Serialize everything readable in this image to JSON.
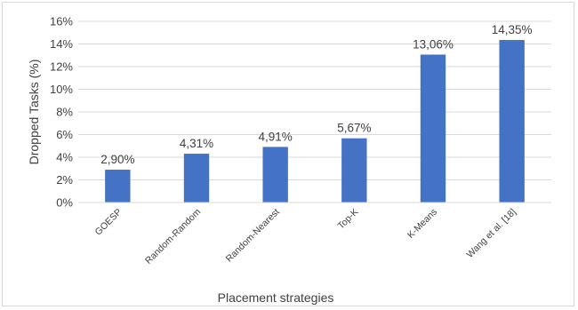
{
  "chart_data": {
    "type": "bar",
    "categories": [
      "GOESP",
      "Random-Random",
      "Random-Nearest",
      "Top-K",
      "K-Means",
      "Wang et al. [18]"
    ],
    "values": [
      2.9,
      4.31,
      4.91,
      5.67,
      13.06,
      14.35
    ],
    "data_labels": [
      "2,90%",
      "4,31%",
      "4,91%",
      "5,67%",
      "13,06%",
      "14,35%"
    ],
    "xlabel": "Placement strategies",
    "ylabel": "Dropped Tasks (%)",
    "ylim": [
      0,
      16
    ],
    "y_ticks": [
      0,
      2,
      4,
      6,
      8,
      10,
      12,
      14,
      16
    ],
    "y_tick_labels": [
      "0%",
      "2%",
      "4%",
      "6%",
      "8%",
      "10%",
      "12%",
      "14%",
      "16%"
    ],
    "grid": true,
    "legend": "none",
    "bar_color": "#4472c4",
    "grid_color": "#d9d9d9"
  }
}
